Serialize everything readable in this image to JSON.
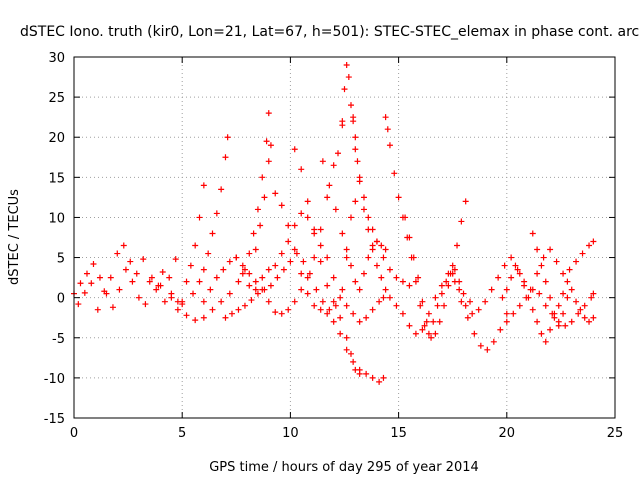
{
  "chart_data": {
    "type": "scatter",
    "title": "dSTEC Iono. truth (kir0, Lon=21, Lat=67, h=501): STEC-STEC_elemax in phase cont. arc",
    "xlabel": "GPS time / hours of day 295 of year 2014",
    "ylabel": "dSTEC  / TECUs",
    "xlim": [
      0,
      25
    ],
    "ylim": [
      -15,
      30
    ],
    "xticks": [
      0,
      5,
      10,
      15,
      20,
      25
    ],
    "yticks": [
      -15,
      -10,
      -5,
      0,
      5,
      10,
      15,
      20,
      25,
      30
    ],
    "grid": true,
    "marker": "+",
    "color": "#ff0000",
    "series": [
      {
        "x": [
          0.0,
          0.3,
          0.6,
          0.9,
          1.2,
          1.5,
          1.8,
          2.1,
          2.4,
          2.7,
          3.0,
          3.3,
          3.6,
          3.9,
          4.2,
          4.5,
          4.8,
          5.0
        ],
        "y": [
          0.5,
          1.8,
          3.0,
          4.2,
          2.5,
          0.5,
          -1.2,
          1.0,
          3.5,
          2.0,
          0.0,
          -0.8,
          2.5,
          1.5,
          -0.5,
          0.0,
          -0.5,
          -0.8
        ]
      },
      {
        "x": [
          0.2,
          0.5,
          0.8,
          1.1,
          1.4,
          1.7,
          2.0,
          2.3,
          2.6,
          2.9,
          3.2,
          3.5,
          3.8,
          4.1,
          4.4,
          4.7
        ],
        "y": [
          -0.8,
          0.6,
          1.8,
          -1.5,
          0.8,
          2.5,
          5.5,
          6.5,
          4.5,
          3.0,
          4.8,
          2.0,
          1.0,
          3.2,
          2.5,
          4.8
        ]
      },
      {
        "x": [
          4.0,
          4.5,
          5.0,
          5.5,
          5.8,
          6.0,
          6.2,
          6.4,
          6.6,
          6.8,
          7.0,
          7.1
        ],
        "y": [
          1.5,
          0.5,
          -0.5,
          0.5,
          2.0,
          3.5,
          5.5,
          8.0,
          10.5,
          13.5,
          17.5,
          20.0
        ]
      },
      {
        "x": [
          4.8,
          5.2,
          5.6,
          6.0,
          6.4,
          6.8,
          7.2,
          7.6,
          7.9,
          8.1,
          8.3,
          8.5,
          8.7,
          8.9,
          9.0
        ],
        "y": [
          -1.5,
          -2.2,
          -2.8,
          -2.5,
          -1.5,
          -0.5,
          0.5,
          2.0,
          3.5,
          5.5,
          8.0,
          11.0,
          15.0,
          19.5,
          23.0
        ]
      },
      {
        "x": [
          5.2,
          5.4,
          5.6,
          5.8,
          6.0
        ],
        "y": [
          2.0,
          4.0,
          6.5,
          10.0,
          14.0
        ]
      },
      {
        "x": [
          6.0,
          6.3,
          6.6,
          6.9,
          7.2,
          7.5,
          7.8,
          8.1,
          8.4,
          8.7,
          9.0,
          9.3,
          9.6,
          9.9,
          10.2,
          10.5,
          10.8,
          11.1,
          11.4,
          11.7,
          12.0,
          12.2,
          12.4
        ],
        "y": [
          -0.5,
          1.0,
          2.5,
          3.5,
          4.5,
          5.0,
          4.0,
          3.0,
          2.0,
          1.0,
          -0.5,
          -1.8,
          -2.0,
          -1.5,
          -0.5,
          1.0,
          2.5,
          5.0,
          8.5,
          12.5,
          16.5,
          18.0,
          22.0
        ]
      },
      {
        "x": [
          7.0,
          7.3,
          7.6,
          7.9,
          8.2,
          8.5,
          8.8,
          9.1,
          9.4,
          9.7,
          10.0,
          10.3,
          10.6,
          10.9,
          11.2,
          11.5,
          11.8,
          12.1,
          12.4,
          12.6,
          12.8,
          13.0
        ],
        "y": [
          -2.5,
          -2.0,
          -1.5,
          -1.0,
          -0.3,
          0.5,
          1.0,
          1.5,
          2.5,
          3.5,
          4.5,
          5.5,
          4.5,
          3.0,
          1.0,
          -0.5,
          -1.5,
          -1.0,
          1.0,
          5.0,
          10.0,
          12.0
        ]
      },
      {
        "x": [
          7.5,
          7.8,
          8.1,
          8.4,
          8.7,
          9.0,
          9.3,
          9.6,
          9.9,
          10.2,
          10.5,
          10.8,
          11.1,
          11.4,
          11.7,
          12.0,
          12.3,
          12.6,
          12.9,
          13.2,
          13.5,
          13.8,
          14.1,
          14.3
        ],
        "y": [
          5.0,
          3.0,
          1.5,
          1.0,
          2.5,
          3.5,
          4.0,
          5.5,
          7.0,
          9.0,
          10.5,
          10.0,
          8.5,
          6.5,
          5.0,
          2.5,
          0.0,
          -1.0,
          -2.0,
          -3.0,
          -2.5,
          -1.5,
          -0.5,
          0.0
        ]
      },
      {
        "x": [
          8.4,
          8.6,
          8.8,
          9.0,
          9.1
        ],
        "y": [
          6.0,
          9.0,
          12.5,
          17.0,
          19.0
        ]
      },
      {
        "x": [
          9.3,
          9.6,
          9.9,
          10.2,
          10.5,
          10.8,
          11.1,
          11.4,
          11.7,
          12.0,
          12.3,
          12.6,
          12.9,
          13.2,
          13.5,
          13.8,
          14.1,
          14.3
        ],
        "y": [
          13.0,
          11.5,
          9.0,
          6.0,
          3.0,
          0.5,
          -1.0,
          -1.5,
          -2.0,
          -3.0,
          -4.5,
          -6.5,
          -8.0,
          -9.0,
          -9.5,
          -10.0,
          -10.5,
          -10.0
        ]
      },
      {
        "x": [
          10.2,
          10.5,
          10.8,
          11.1,
          11.4,
          11.7,
          12.0,
          12.3,
          12.6,
          12.8,
          13.0,
          13.2
        ],
        "y": [
          18.5,
          16.0,
          12.0,
          8.0,
          4.5,
          1.5,
          -0.5,
          -2.5,
          -5.0,
          -7.0,
          -9.0,
          -9.5
        ]
      },
      {
        "x": [
          11.5,
          11.8,
          12.1,
          12.4,
          12.6,
          12.8,
          13.0,
          13.2,
          13.4,
          13.6,
          13.8,
          14.0,
          14.2,
          14.4
        ],
        "y": [
          17.0,
          14.0,
          11.0,
          8.0,
          6.0,
          4.0,
          2.0,
          1.0,
          3.0,
          5.0,
          6.5,
          7.0,
          6.5,
          6.0
        ]
      },
      {
        "x": [
          12.4,
          12.5,
          12.6,
          12.7,
          12.8,
          12.9,
          13.0,
          13.2,
          13.4,
          13.6,
          13.8,
          14.0,
          14.3,
          14.6,
          14.9,
          15.2,
          15.5
        ],
        "y": [
          21.5,
          26.0,
          29.0,
          27.5,
          24.0,
          22.0,
          18.5,
          15.0,
          12.5,
          10.0,
          8.5,
          7.0,
          5.0,
          3.5,
          2.5,
          2.0,
          1.5
        ]
      },
      {
        "x": [
          12.9,
          13.0,
          13.1,
          13.2,
          13.4,
          13.6,
          13.8,
          14.0,
          14.2,
          14.4
        ],
        "y": [
          22.5,
          20.0,
          17.0,
          14.5,
          11.0,
          8.5,
          6.0,
          4.0,
          2.5,
          1.0
        ]
      },
      {
        "x": [
          14.4,
          14.5,
          14.6,
          14.8,
          15.0,
          15.2,
          15.4,
          15.6,
          15.8,
          16.0,
          16.2,
          16.4,
          16.6,
          16.8,
          17.0,
          17.2,
          17.4,
          17.6,
          17.8,
          18.0,
          18.3
        ],
        "y": [
          22.5,
          21.0,
          19.0,
          15.5,
          12.5,
          10.0,
          7.5,
          5.0,
          2.0,
          -1.0,
          -3.5,
          -4.5,
          -3.0,
          -1.0,
          0.5,
          2.0,
          3.0,
          3.5,
          2.0,
          0.5,
          -0.5
        ]
      },
      {
        "x": [
          15.3,
          15.5,
          15.7,
          15.9,
          16.1,
          16.3,
          16.5,
          16.7,
          16.9,
          17.1,
          17.3,
          17.5,
          17.7,
          17.9,
          18.1
        ],
        "y": [
          10.0,
          7.5,
          5.0,
          2.5,
          -0.5,
          -3.0,
          -5.0,
          -4.5,
          -3.0,
          -1.0,
          1.5,
          4.0,
          6.5,
          9.5,
          12.0
        ]
      },
      {
        "x": [
          14.6,
          14.9,
          15.2,
          15.5,
          15.8,
          16.1,
          16.4,
          16.7,
          17.0,
          17.3,
          17.6,
          17.9,
          18.2,
          18.5,
          18.8,
          19.1,
          19.4,
          19.7,
          20.0
        ],
        "y": [
          0.0,
          -1.0,
          -2.0,
          -3.5,
          -4.5,
          -4.0,
          -2.0,
          0.0,
          1.5,
          3.0,
          2.0,
          -0.5,
          -2.5,
          -4.5,
          -6.0,
          -6.5,
          -5.5,
          -4.0,
          -2.0
        ]
      },
      {
        "x": [
          17.5,
          17.8,
          18.1,
          18.4,
          18.7,
          19.0,
          19.3,
          19.6,
          19.9,
          20.2,
          20.5,
          20.8,
          21.1,
          21.4,
          21.7,
          22.0,
          22.3,
          22.6,
          22.9,
          23.2,
          23.5,
          23.8,
          24.0
        ],
        "y": [
          3.0,
          1.0,
          -1.0,
          -2.0,
          -1.5,
          -0.5,
          1.0,
          2.5,
          4.0,
          5.0,
          3.5,
          2.0,
          1.0,
          3.0,
          5.0,
          6.0,
          4.5,
          3.0,
          3.5,
          4.5,
          5.5,
          6.5,
          7.0
        ]
      },
      {
        "x": [
          19.8,
          20.0,
          20.2,
          20.4,
          20.6,
          20.8,
          21.0,
          21.2,
          21.4,
          21.6,
          21.8,
          22.0,
          22.2,
          22.4,
          22.6,
          22.8,
          23.0,
          23.2,
          23.4,
          23.6,
          23.8,
          24.0
        ],
        "y": [
          0.0,
          1.0,
          2.5,
          4.0,
          3.0,
          1.5,
          0.0,
          -1.5,
          -3.0,
          -4.5,
          -5.5,
          -4.0,
          -2.5,
          -1.0,
          0.5,
          2.0,
          1.0,
          -0.5,
          -1.5,
          -2.5,
          -3.0,
          -2.5
        ]
      },
      {
        "x": [
          20.0,
          20.3,
          20.6,
          20.9,
          21.2,
          21.5,
          21.8,
          22.1,
          22.4,
          22.7,
          23.0,
          23.3,
          23.6,
          23.9,
          24.0
        ],
        "y": [
          -3.0,
          -2.0,
          -1.0,
          0.0,
          1.0,
          0.5,
          -1.0,
          -2.0,
          -3.0,
          -3.5,
          -3.0,
          -2.0,
          -1.0,
          0.0,
          0.5
        ]
      },
      {
        "x": [
          21.2,
          21.4,
          21.6,
          21.8,
          22.0,
          22.2,
          22.4,
          22.6,
          22.8
        ],
        "y": [
          8.0,
          6.0,
          4.0,
          2.0,
          0.0,
          -2.0,
          -3.5,
          -2.0,
          0.0
        ]
      }
    ]
  }
}
